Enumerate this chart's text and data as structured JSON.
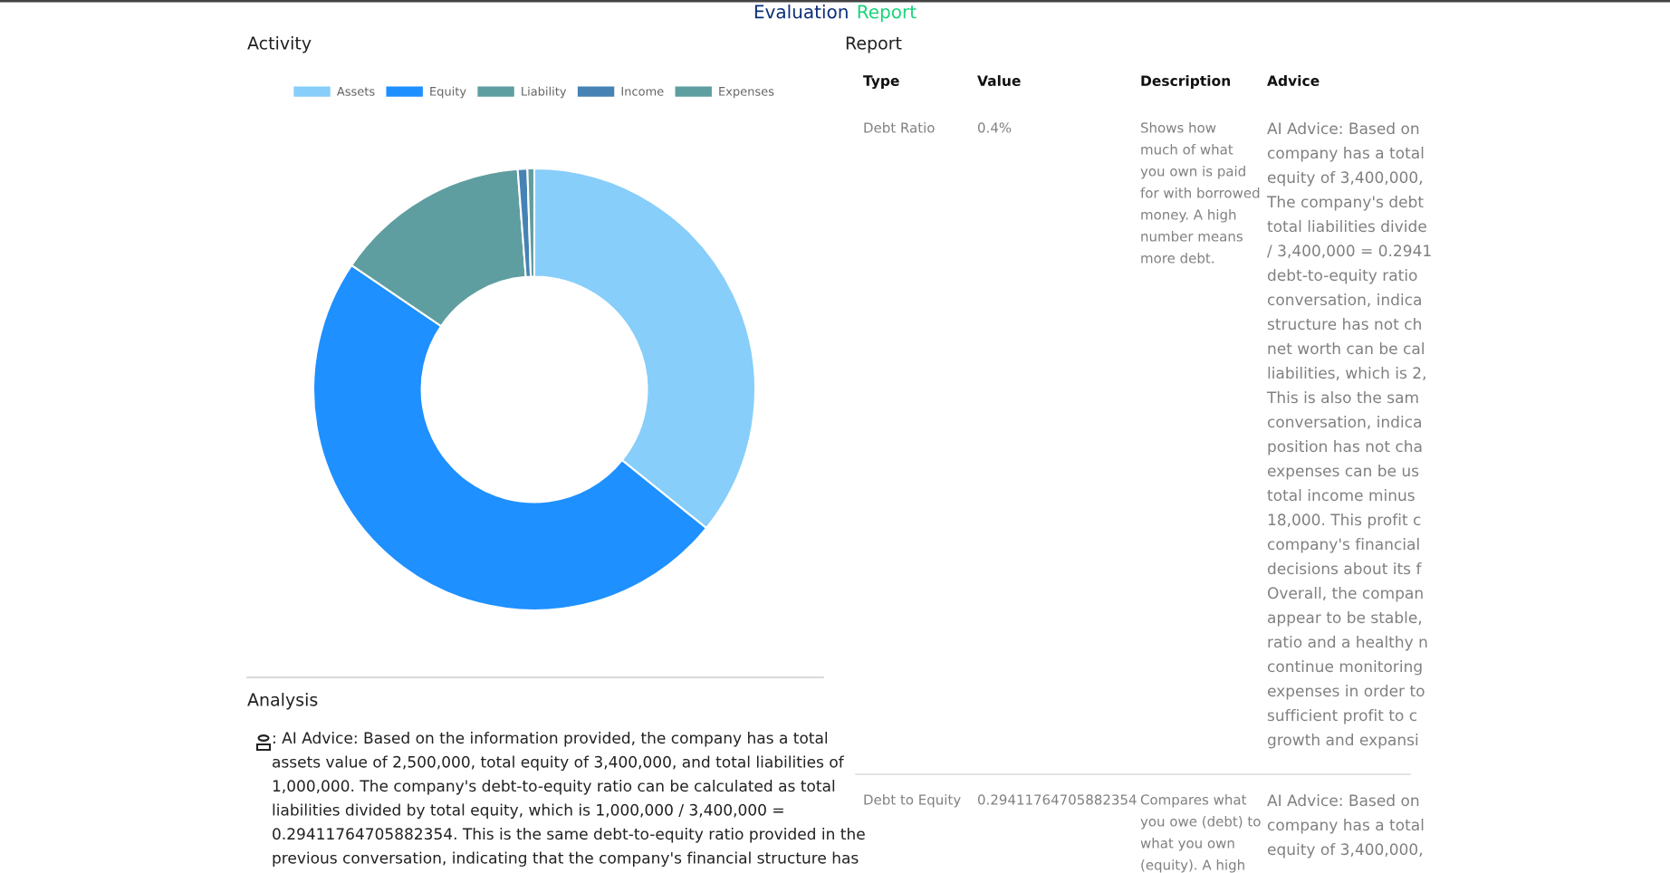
{
  "chart_data": [
    {
      "type": "other",
      "annotations": [
        "Evaluation",
        "Report"
      ],
      "colors": [
        "#0b2e7a",
        "#19d47c"
      ]
    },
    {
      "type": "donut",
      "title": "Activity",
      "categories": [
        "Assets",
        "Equity",
        "Liability",
        "Income",
        "Expenses"
      ],
      "values": [
        35.8,
        48.7,
        14.3,
        0.7,
        0.5
      ],
      "colors": [
        "#87cefa",
        "#1e90ff",
        "#5f9ea0",
        "#4682b4",
        "#5f9ea0"
      ],
      "legend": "top"
    },
    {
      "type": "other",
      "title": "Report",
      "annotations": [
        "Type",
        "Value",
        "Description",
        "Advice",
        "Debt Ratio",
        "0.4%",
        "Shows how\nmuch of what\nyou own is paid\nfor with borrowed\nmoney. A high\nnumber means\nmore debt.",
        "AI Advice: Based on\ncompany has a total\nequity of 3,400,000,\nThe company's debt\ntotal liabilities divide\n/ 3,400,000 = 0.2941\ndebt-to-equity ratio\nconversation, indica\nstructure has not ch\nnet worth can be cal\nliabilities, which is 2,\nThis is also the sam\nconversation, indica\nposition has not cha\nexpenses can be us\ntotal income minus\n18,000. This profit c\ncompany's financial\ndecisions about its f\nOverall, the compan\nappear to be stable,\nratio and a healthy n\ncontinue monitoring\nexpenses in order to\nsufficient profit to c\ngrowth and expansi",
        "Debt to Equity",
        "0.29411764705882354",
        "Compares what\nyou owe (debt) to\nwhat you own\n(equity). A high",
        "AI Advice: Based on\ncompany has a total\nequity of 3,400,000,"
      ]
    },
    {
      "type": "other",
      "title": "Analysis",
      "annotations": [
        ": AI Advice: Based on the information provided, the company has a total\nassets value of 2,500,000, total equity of 3,400,000, and total liabilities of\n1,000,000. The company's debt-to-equity ratio can be calculated as total\nliabilities divided by total equity, which is 1,000,000 / 3,400,000 =\n0.29411764705882354. This is the same debt-to-equity ratio provided in the\nprevious conversation, indicating that the company's financial structure has"
      ]
    }
  ]
}
